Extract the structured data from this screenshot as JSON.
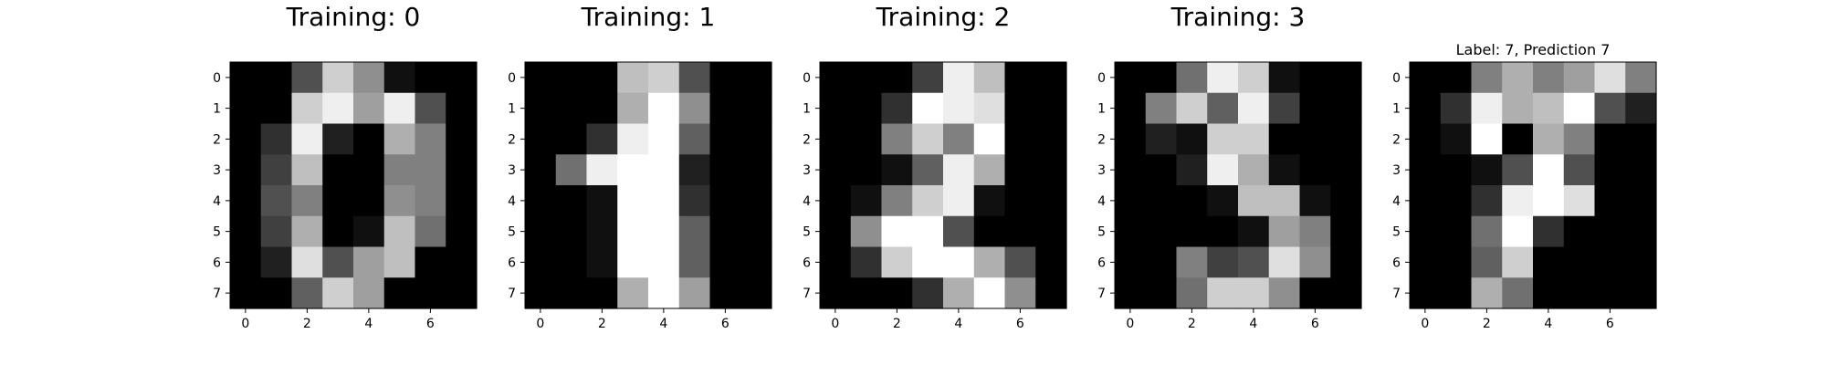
{
  "chart_data": [
    {
      "type": "heatmap",
      "title": "Training: 0",
      "colormap": "gray",
      "value_range": [
        0,
        16
      ],
      "x_ticks": [
        "0",
        "2",
        "4",
        "6"
      ],
      "y_ticks": [
        "0",
        "1",
        "2",
        "3",
        "4",
        "5",
        "6",
        "7"
      ],
      "grid": false,
      "values": [
        [
          0,
          0,
          5,
          13,
          9,
          1,
          0,
          0
        ],
        [
          0,
          0,
          13,
          15,
          10,
          15,
          5,
          0
        ],
        [
          0,
          3,
          15,
          2,
          0,
          11,
          8,
          0
        ],
        [
          0,
          4,
          12,
          0,
          0,
          8,
          8,
          0
        ],
        [
          0,
          5,
          8,
          0,
          0,
          9,
          8,
          0
        ],
        [
          0,
          4,
          11,
          0,
          1,
          12,
          7,
          0
        ],
        [
          0,
          2,
          14,
          5,
          10,
          12,
          0,
          0
        ],
        [
          0,
          0,
          6,
          13,
          10,
          0,
          0,
          0
        ]
      ]
    },
    {
      "type": "heatmap",
      "title": "Training: 1",
      "colormap": "gray",
      "value_range": [
        0,
        16
      ],
      "x_ticks": [
        "0",
        "2",
        "4",
        "6"
      ],
      "y_ticks": [
        "0",
        "1",
        "2",
        "3",
        "4",
        "5",
        "6",
        "7"
      ],
      "grid": false,
      "values": [
        [
          0,
          0,
          0,
          12,
          13,
          5,
          0,
          0
        ],
        [
          0,
          0,
          0,
          11,
          16,
          9,
          0,
          0
        ],
        [
          0,
          0,
          3,
          15,
          16,
          6,
          0,
          0
        ],
        [
          0,
          7,
          15,
          16,
          16,
          2,
          0,
          0
        ],
        [
          0,
          0,
          1,
          16,
          16,
          3,
          0,
          0
        ],
        [
          0,
          0,
          1,
          16,
          16,
          6,
          0,
          0
        ],
        [
          0,
          0,
          1,
          16,
          16,
          6,
          0,
          0
        ],
        [
          0,
          0,
          0,
          11,
          16,
          10,
          0,
          0
        ]
      ]
    },
    {
      "type": "heatmap",
      "title": "Training: 2",
      "colormap": "gray",
      "value_range": [
        0,
        16
      ],
      "x_ticks": [
        "0",
        "2",
        "4",
        "6"
      ],
      "y_ticks": [
        "0",
        "1",
        "2",
        "3",
        "4",
        "5",
        "6",
        "7"
      ],
      "grid": false,
      "values": [
        [
          0,
          0,
          0,
          4,
          15,
          12,
          0,
          0
        ],
        [
          0,
          0,
          3,
          16,
          15,
          14,
          0,
          0
        ],
        [
          0,
          0,
          8,
          13,
          8,
          16,
          0,
          0
        ],
        [
          0,
          0,
          1,
          6,
          15,
          11,
          0,
          0
        ],
        [
          0,
          1,
          8,
          13,
          15,
          1,
          0,
          0
        ],
        [
          0,
          9,
          16,
          16,
          5,
          0,
          0,
          0
        ],
        [
          0,
          3,
          13,
          16,
          16,
          11,
          5,
          0
        ],
        [
          0,
          0,
          0,
          3,
          11,
          16,
          9,
          0
        ]
      ]
    },
    {
      "type": "heatmap",
      "title": "Training: 3",
      "colormap": "gray",
      "value_range": [
        0,
        16
      ],
      "x_ticks": [
        "0",
        "2",
        "4",
        "6"
      ],
      "y_ticks": [
        "0",
        "1",
        "2",
        "3",
        "4",
        "5",
        "6",
        "7"
      ],
      "grid": false,
      "values": [
        [
          0,
          0,
          7,
          15,
          13,
          1,
          0,
          0
        ],
        [
          0,
          8,
          13,
          6,
          15,
          4,
          0,
          0
        ],
        [
          0,
          2,
          1,
          13,
          13,
          0,
          0,
          0
        ],
        [
          0,
          0,
          2,
          15,
          11,
          1,
          0,
          0
        ],
        [
          0,
          0,
          0,
          1,
          12,
          12,
          1,
          0
        ],
        [
          0,
          0,
          0,
          0,
          1,
          10,
          8,
          0
        ],
        [
          0,
          0,
          8,
          4,
          5,
          14,
          9,
          0
        ],
        [
          0,
          0,
          7,
          13,
          13,
          9,
          0,
          0
        ]
      ]
    },
    {
      "type": "heatmap",
      "title": "Label: 7, Prediction 7",
      "colormap": "gray",
      "value_range": [
        0,
        16
      ],
      "x_ticks": [
        "0",
        "2",
        "4",
        "6"
      ],
      "y_ticks": [
        "0",
        "1",
        "2",
        "3",
        "4",
        "5",
        "6",
        "7"
      ],
      "grid": false,
      "values": [
        [
          0,
          0,
          8,
          11,
          8,
          10,
          14,
          8
        ],
        [
          0,
          3,
          15,
          11,
          12,
          16,
          5,
          2
        ],
        [
          0,
          1,
          16,
          0,
          11,
          8,
          0,
          0
        ],
        [
          0,
          0,
          1,
          5,
          16,
          5,
          0,
          0
        ],
        [
          0,
          0,
          3,
          15,
          16,
          14,
          0,
          0
        ],
        [
          0,
          0,
          7,
          16,
          3,
          0,
          0,
          0
        ],
        [
          0,
          0,
          6,
          13,
          0,
          0,
          0,
          0
        ],
        [
          0,
          0,
          11,
          7,
          0,
          0,
          0,
          0
        ]
      ]
    }
  ]
}
